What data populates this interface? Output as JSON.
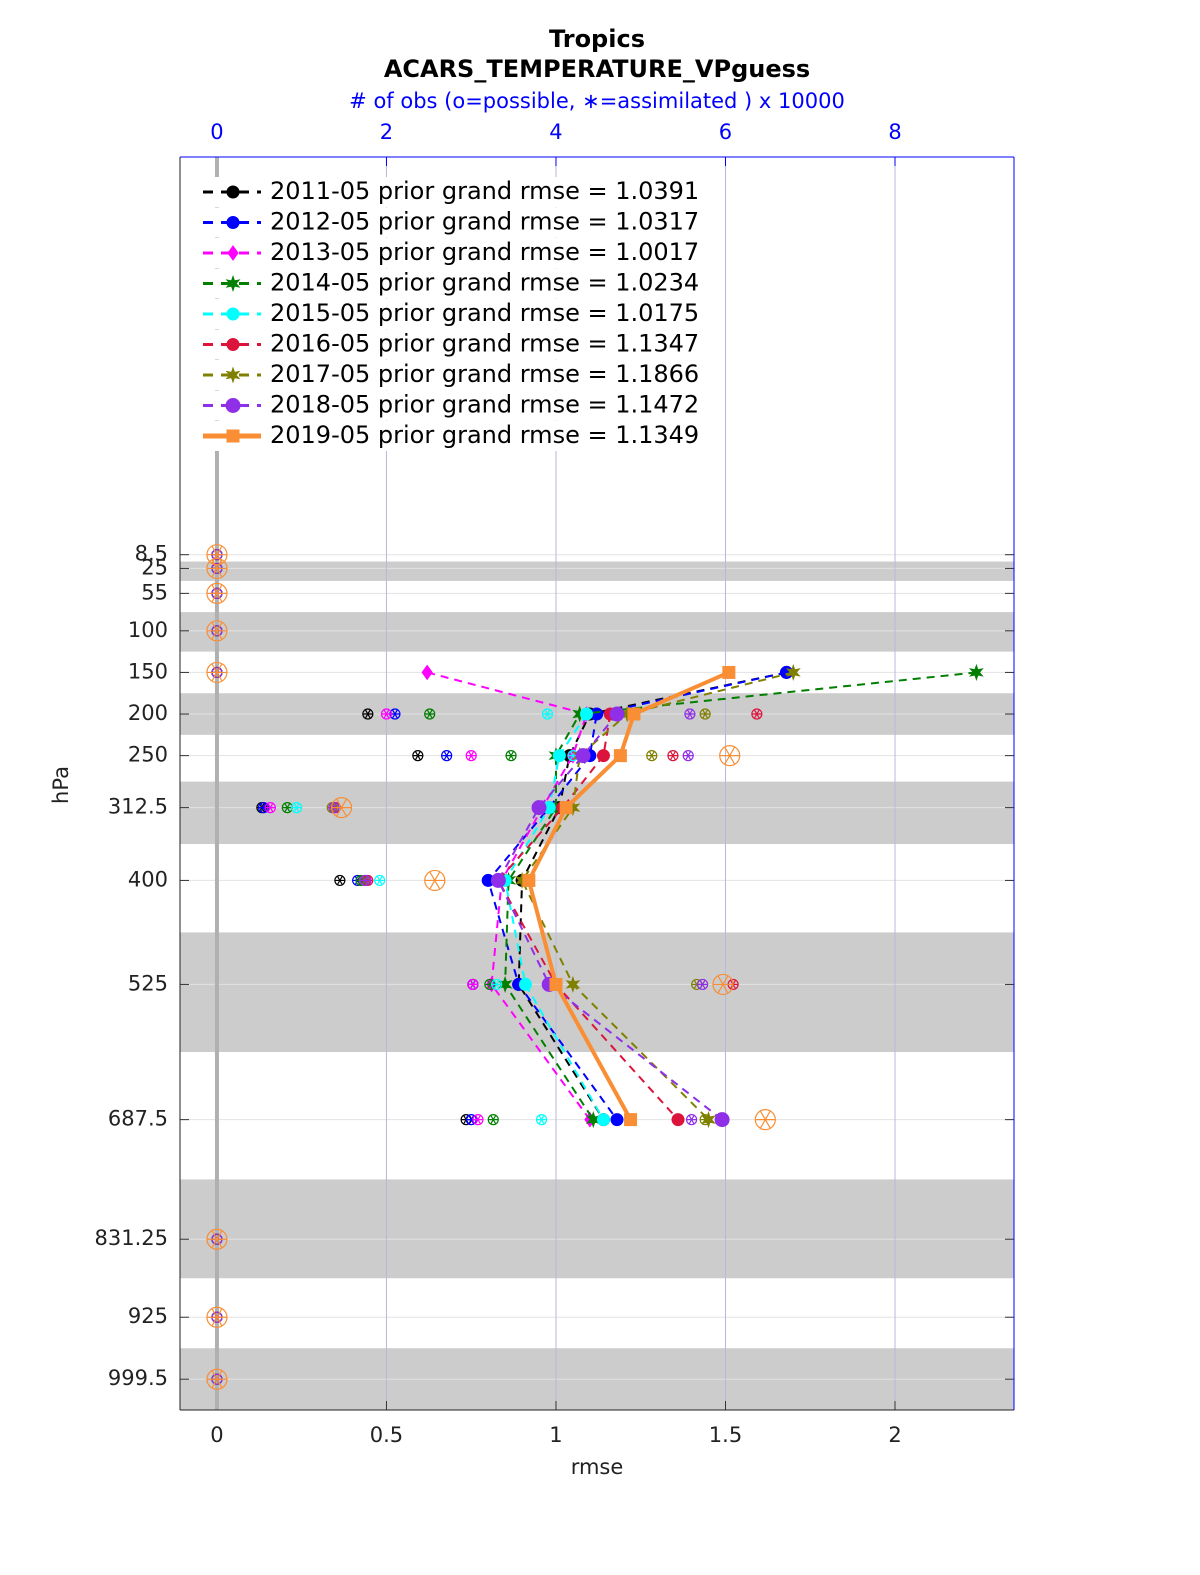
{
  "chart_data": {
    "type": "line",
    "title": "Tropics",
    "subtitle": "ACARS_TEMPERATURE_VPguess",
    "x2label": "# of obs (o=possible, ∗=assimilated ) x 10000",
    "xlabel": "rmse",
    "ylabel": "hPa",
    "y": [
      8.5,
      25,
      55,
      100,
      150,
      200,
      250,
      312.5,
      400,
      525,
      687.5,
      831.25,
      925,
      999.5
    ],
    "ylim": [
      1036.5,
      -469.5
    ],
    "yticks": [
      8.5,
      25,
      55,
      100,
      150,
      200,
      250,
      312.5,
      400,
      525,
      687.5,
      831.25,
      925,
      999.5
    ],
    "xlim": [
      -0.109,
      2.351
    ],
    "xticks": [
      0,
      0.5,
      1,
      1.5,
      2
    ],
    "x2lim": [
      -0.436,
      9.404
    ],
    "x2ticks": [
      0,
      2,
      4,
      6,
      8
    ],
    "grid": true,
    "legend": "upper left",
    "series": [
      {
        "name": "2011-05 prior grand rmse = 1.0391",
        "color": "#000000",
        "marker": "circle",
        "dash": true,
        "linewidth": 2,
        "values": [
          null,
          null,
          null,
          null,
          1.68,
          1.1,
          1.04,
          1.01,
          0.9,
          0.89,
          1.14,
          null,
          null,
          null
        ],
        "obs": [
          0,
          0,
          0,
          0,
          0,
          1.78,
          2.37,
          0.53,
          1.45,
          3.02,
          2.94,
          0,
          0,
          0
        ]
      },
      {
        "name": "2012-05 prior grand rmse = 1.0317",
        "color": "#0000ff",
        "marker": "circle",
        "dash": true,
        "linewidth": 2,
        "values": [
          null,
          null,
          null,
          null,
          1.68,
          1.12,
          1.1,
          0.98,
          0.8,
          0.89,
          1.18,
          null,
          null,
          null
        ],
        "obs": [
          0,
          0,
          0,
          0,
          0,
          2.1,
          2.71,
          0.55,
          1.66,
          3.02,
          3.0,
          0,
          0,
          0
        ]
      },
      {
        "name": "2013-05 prior grand rmse = 1.0017",
        "color": "#ff00ff",
        "marker": "diamond",
        "dash": true,
        "linewidth": 2,
        "values": [
          null,
          null,
          null,
          null,
          0.62,
          1.09,
          1.05,
          0.96,
          0.84,
          0.81,
          1.1,
          null,
          null,
          null
        ],
        "obs": [
          0,
          0,
          0,
          0,
          0,
          2.0,
          3.0,
          0.63,
          1.76,
          3.02,
          3.08,
          0,
          0,
          0
        ]
      },
      {
        "name": "2014-05 prior grand rmse = 1.0234",
        "color": "#007f00",
        "marker": "hexagram",
        "dash": true,
        "linewidth": 2,
        "values": [
          null,
          null,
          null,
          null,
          2.24,
          1.07,
          1.0,
          1.0,
          0.86,
          0.85,
          1.11,
          null,
          null,
          null
        ],
        "obs": [
          0,
          0,
          0,
          0,
          0,
          2.51,
          3.47,
          0.83,
          1.7,
          3.22,
          3.26,
          0,
          0,
          0
        ]
      },
      {
        "name": "2015-05 prior grand rmse = 1.0175",
        "color": "#00ffff",
        "marker": "circle",
        "dash": true,
        "linewidth": 2,
        "values": [
          null,
          null,
          null,
          null,
          null,
          1.09,
          1.01,
          0.98,
          0.85,
          0.91,
          1.14,
          null,
          null,
          null
        ],
        "obs": [
          0,
          0,
          0,
          0,
          0,
          3.9,
          4.2,
          0.94,
          1.92,
          3.3,
          3.83,
          0,
          0,
          0
        ]
      },
      {
        "name": "2016-05 prior grand rmse = 1.1347",
        "color": "#dc143c",
        "marker": "circle",
        "dash": true,
        "linewidth": 2,
        "values": [
          null,
          null,
          null,
          null,
          null,
          1.16,
          1.14,
          1.02,
          0.83,
          1.0,
          1.36,
          null,
          null,
          null
        ],
        "obs": [
          0,
          0,
          0,
          0,
          0,
          6.37,
          5.38,
          1.4,
          1.78,
          6.09,
          5.44,
          0,
          0,
          0
        ]
      },
      {
        "name": "2017-05 prior grand rmse = 1.1866",
        "color": "#808000",
        "marker": "asterisk",
        "dash": true,
        "linewidth": 2,
        "values": [
          null,
          null,
          null,
          null,
          1.7,
          1.21,
          1.07,
          1.05,
          0.9,
          1.05,
          1.45,
          null,
          null,
          null
        ],
        "obs": [
          0,
          0,
          0,
          0,
          0,
          5.76,
          5.13,
          1.36,
          1.74,
          5.66,
          5.76,
          0,
          0,
          0
        ]
      },
      {
        "name": "2018-05 prior grand rmse = 1.1472",
        "color": "#8f2fe8",
        "marker": "bigcircle",
        "dash": true,
        "linewidth": 2,
        "values": [
          null,
          null,
          null,
          null,
          null,
          1.18,
          1.08,
          0.95,
          0.83,
          0.98,
          1.49,
          null,
          null,
          null
        ],
        "obs": [
          0,
          0,
          0,
          0,
          0,
          5.58,
          5.56,
          1.38,
          1.75,
          5.73,
          5.6,
          0,
          0,
          0
        ]
      },
      {
        "name": "2019-05 prior grand rmse = 1.1349",
        "color": "#f98e34",
        "marker": "square",
        "dash": false,
        "linewidth": 4,
        "values": [
          null,
          null,
          null,
          null,
          1.51,
          1.23,
          1.19,
          1.03,
          0.92,
          1.0,
          1.22,
          null,
          null,
          null
        ],
        "obs": [
          0,
          0,
          0,
          0,
          0,
          null,
          6.05,
          1.47,
          2.57,
          5.97,
          6.47,
          0,
          0,
          0
        ]
      }
    ]
  }
}
